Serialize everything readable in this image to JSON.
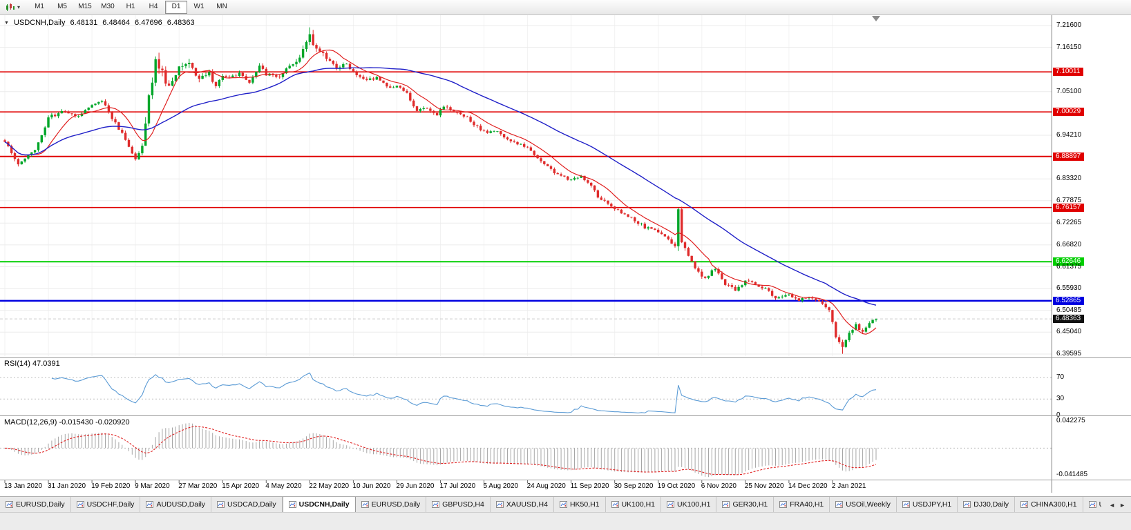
{
  "toolbar": {
    "timeframes": [
      "M1",
      "M5",
      "M15",
      "M30",
      "H1",
      "H4",
      "D1",
      "W1",
      "MN"
    ],
    "active_timeframe": "D1"
  },
  "info_bar": {
    "collapse_icon": "▼",
    "symbol": "USDCNH,Daily",
    "open": "6.48131",
    "high": "6.48464",
    "low": "6.47696",
    "close": "6.48363"
  },
  "price_axis": {
    "labels": [
      {
        "text": "7.21600",
        "price": 7.216,
        "kind": "grid"
      },
      {
        "text": "7.16150",
        "price": 7.1615,
        "kind": "grid"
      },
      {
        "text": "7.10011",
        "price": 7.10011,
        "kind": "level",
        "color": "#E00000"
      },
      {
        "text": "7.05100",
        "price": 7.051,
        "kind": "grid"
      },
      {
        "text": "7.00029",
        "price": 7.00029,
        "kind": "level",
        "color": "#E00000"
      },
      {
        "text": "6.94210",
        "price": 6.9421,
        "kind": "grid"
      },
      {
        "text": "6.88897",
        "price": 6.88897,
        "kind": "level",
        "color": "#E00000"
      },
      {
        "text": "6.83320",
        "price": 6.8332,
        "kind": "grid"
      },
      {
        "text": "6.77875",
        "price": 6.77875,
        "kind": "grid"
      },
      {
        "text": "6.76157",
        "price": 6.76157,
        "kind": "level",
        "color": "#E00000"
      },
      {
        "text": "6.72265",
        "price": 6.72265,
        "kind": "grid"
      },
      {
        "text": "6.66820",
        "price": 6.6682,
        "kind": "grid"
      },
      {
        "text": "6.62646",
        "price": 6.62646,
        "kind": "level",
        "color": "#00CE00"
      },
      {
        "text": "6.61375",
        "price": 6.61375,
        "kind": "grid"
      },
      {
        "text": "6.55930",
        "price": 6.5593,
        "kind": "grid"
      },
      {
        "text": "6.52865",
        "price": 6.52865,
        "kind": "level",
        "color": "#0000E0"
      },
      {
        "text": "6.50485",
        "price": 6.50485,
        "kind": "grid"
      },
      {
        "text": "6.48363",
        "price": 6.48363,
        "kind": "current"
      },
      {
        "text": "6.45040",
        "price": 6.4504,
        "kind": "grid"
      },
      {
        "text": "6.39595",
        "price": 6.39595,
        "kind": "grid"
      }
    ]
  },
  "chart_data": {
    "type": "candlestick",
    "symbol": "USDCNH",
    "period": "Daily",
    "visible_price_range": [
      6.3907,
      7.2418
    ],
    "current_bid": 6.48363,
    "candle_count": 261,
    "colors": {
      "up": "#00A629",
      "down": "#DF2B2B",
      "ma_fast": "#E02020",
      "ma_slow": "#2020C8"
    },
    "moving_averages": [
      {
        "name": "fast-ma",
        "period": 10,
        "color": "#E02020"
      },
      {
        "name": "slow-ma",
        "period": 45,
        "color": "#2020C8"
      }
    ],
    "horizontal_levels": [
      {
        "price": 7.10011,
        "color": "#E00000",
        "width": 1.6
      },
      {
        "price": 7.00029,
        "color": "#E00000",
        "width": 1.6
      },
      {
        "price": 6.88897,
        "color": "#E00000",
        "width": 2
      },
      {
        "price": 6.76157,
        "color": "#E00000",
        "width": 1.6
      },
      {
        "price": 6.62646,
        "color": "#00CE00",
        "width": 2
      },
      {
        "price": 6.52865,
        "color": "#0000E0",
        "width": 2.5
      }
    ],
    "peak": {
      "index": 91,
      "high": 7.2115
    },
    "trough": {
      "index": 250,
      "low": 6.3965
    },
    "anchors": [
      [
        0,
        6.93,
        0.016
      ],
      [
        4,
        6.872,
        0.016
      ],
      [
        9,
        6.906,
        0.014
      ],
      [
        13,
        6.985,
        0.016
      ],
      [
        17,
        7.002,
        0.014
      ],
      [
        22,
        6.99,
        0.012
      ],
      [
        26,
        7.016,
        0.012
      ],
      [
        29,
        7.03,
        0.012
      ],
      [
        32,
        6.985,
        0.016
      ],
      [
        36,
        6.934,
        0.018
      ],
      [
        39,
        6.878,
        0.022
      ],
      [
        41,
        6.922,
        0.032
      ],
      [
        43,
        7.03,
        0.055
      ],
      [
        45,
        7.132,
        0.05
      ],
      [
        47,
        7.094,
        0.045
      ],
      [
        49,
        7.064,
        0.04
      ],
      [
        52,
        7.106,
        0.034
      ],
      [
        55,
        7.126,
        0.028
      ],
      [
        58,
        7.08,
        0.024
      ],
      [
        61,
        7.096,
        0.02
      ],
      [
        63,
        7.064,
        0.02
      ],
      [
        65,
        7.086,
        0.018
      ],
      [
        70,
        7.096,
        0.016
      ],
      [
        73,
        7.076,
        0.016
      ],
      [
        76,
        7.114,
        0.016
      ],
      [
        78,
        7.094,
        0.016
      ],
      [
        82,
        7.086,
        0.016
      ],
      [
        85,
        7.114,
        0.018
      ],
      [
        88,
        7.136,
        0.02
      ],
      [
        91,
        7.186,
        0.034
      ],
      [
        93,
        7.156,
        0.028
      ],
      [
        97,
        7.13,
        0.02
      ],
      [
        99,
        7.112,
        0.018
      ],
      [
        102,
        7.12,
        0.016
      ],
      [
        105,
        7.092,
        0.016
      ],
      [
        108,
        7.078,
        0.015
      ],
      [
        111,
        7.088,
        0.014
      ],
      [
        114,
        7.06,
        0.015
      ],
      [
        117,
        7.068,
        0.014
      ],
      [
        120,
        7.048,
        0.014
      ],
      [
        123,
        7.002,
        0.016
      ],
      [
        126,
        7.012,
        0.014
      ],
      [
        129,
        6.992,
        0.014
      ],
      [
        131,
        7.014,
        0.013
      ],
      [
        134,
        7.002,
        0.013
      ],
      [
        137,
        6.992,
        0.013
      ],
      [
        140,
        6.97,
        0.014
      ],
      [
        143,
        6.95,
        0.014
      ],
      [
        147,
        6.952,
        0.013
      ],
      [
        150,
        6.93,
        0.013
      ],
      [
        153,
        6.92,
        0.013
      ],
      [
        156,
        6.912,
        0.013
      ],
      [
        159,
        6.882,
        0.014
      ],
      [
        162,
        6.862,
        0.014
      ],
      [
        165,
        6.842,
        0.014
      ],
      [
        169,
        6.832,
        0.014
      ],
      [
        172,
        6.842,
        0.013
      ],
      [
        175,
        6.815,
        0.014
      ],
      [
        177,
        6.79,
        0.015
      ],
      [
        180,
        6.772,
        0.014
      ],
      [
        182,
        6.76,
        0.014
      ],
      [
        185,
        6.742,
        0.013
      ],
      [
        188,
        6.73,
        0.013
      ],
      [
        191,
        6.712,
        0.013
      ],
      [
        195,
        6.7,
        0.014
      ],
      [
        198,
        6.68,
        0.014
      ],
      [
        200,
        6.66,
        0.02
      ],
      [
        201,
        6.748,
        0.1
      ],
      [
        202,
        6.676,
        0.022
      ],
      [
        204,
        6.642,
        0.016
      ],
      [
        206,
        6.606,
        0.016
      ],
      [
        209,
        6.586,
        0.016
      ],
      [
        212,
        6.61,
        0.015
      ],
      [
        215,
        6.57,
        0.015
      ],
      [
        218,
        6.556,
        0.014
      ],
      [
        221,
        6.578,
        0.014
      ],
      [
        224,
        6.572,
        0.013
      ],
      [
        227,
        6.558,
        0.013
      ],
      [
        230,
        6.536,
        0.013
      ],
      [
        234,
        6.542,
        0.013
      ],
      [
        237,
        6.53,
        0.013
      ],
      [
        240,
        6.538,
        0.013
      ],
      [
        243,
        6.526,
        0.013
      ],
      [
        246,
        6.506,
        0.014
      ],
      [
        248,
        6.444,
        0.022
      ],
      [
        250,
        6.41,
        0.022
      ],
      [
        252,
        6.452,
        0.018
      ],
      [
        254,
        6.468,
        0.016
      ],
      [
        256,
        6.452,
        0.015
      ],
      [
        258,
        6.472,
        0.013
      ],
      [
        260,
        6.48363,
        0.009
      ]
    ],
    "x_ticks": [
      {
        "label": "13 Jan 2020",
        "index": 0
      },
      {
        "label": "31 Jan 2020",
        "index": 13
      },
      {
        "label": "19 Feb 2020",
        "index": 26
      },
      {
        "label": "9 Mar 2020",
        "index": 39
      },
      {
        "label": "27 Mar 2020",
        "index": 52
      },
      {
        "label": "15 Apr 2020",
        "index": 65
      },
      {
        "label": "4 May 2020",
        "index": 78
      },
      {
        "label": "22 May 2020",
        "index": 91
      },
      {
        "label": "10 Jun 2020",
        "index": 104
      },
      {
        "label": "29 Jun 2020",
        "index": 117
      },
      {
        "label": "17 Jul 2020",
        "index": 130
      },
      {
        "label": "5 Aug 2020",
        "index": 143
      },
      {
        "label": "24 Aug 2020",
        "index": 156
      },
      {
        "label": "11 Sep 2020",
        "index": 169
      },
      {
        "label": "30 Sep 2020",
        "index": 182
      },
      {
        "label": "19 Oct 2020",
        "index": 195
      },
      {
        "label": "6 Nov 2020",
        "index": 208
      },
      {
        "label": "25 Nov 2020",
        "index": 221
      },
      {
        "label": "14 Dec 2020",
        "index": 234
      },
      {
        "label": "2 Jan 2021",
        "index": 247
      }
    ]
  },
  "rsi_panel": {
    "label": "RSI(14) 47.0391",
    "value": 47.0391,
    "period": 14,
    "axis": [
      "70",
      "30",
      "0"
    ],
    "upper_level": 70,
    "lower_level": 30,
    "line_color": "#5B9BD5"
  },
  "macd_panel": {
    "label": "MACD(12,26,9) -0.015430 -0.020920",
    "macd_value": -0.01543,
    "signal_value": -0.02092,
    "params": [
      12,
      26,
      9
    ],
    "axis_max": "0.042275",
    "axis_min": "-0.041485",
    "histogram_color": "#A6A6A6",
    "signal_color": "#E02020"
  },
  "tab_bar": {
    "tabs": [
      "EURUSD,Daily",
      "USDCHF,Daily",
      "AUDUSD,Daily",
      "USDCAD,Daily",
      "USDCNH,Daily",
      "EURUSD,Daily",
      "GBPUSD,H4",
      "XAUUSD,H4",
      "HK50,H1",
      "UK100,H1",
      "UK100,H1",
      "GER30,H1",
      "FRA40,H1",
      "USOil,Weekly",
      "USDJPY,H1",
      "DJ30,Daily",
      "CHINA300,H1",
      "USOil,"
    ],
    "active_index": 4,
    "scroll_left": "◄",
    "scroll_right": "►"
  }
}
